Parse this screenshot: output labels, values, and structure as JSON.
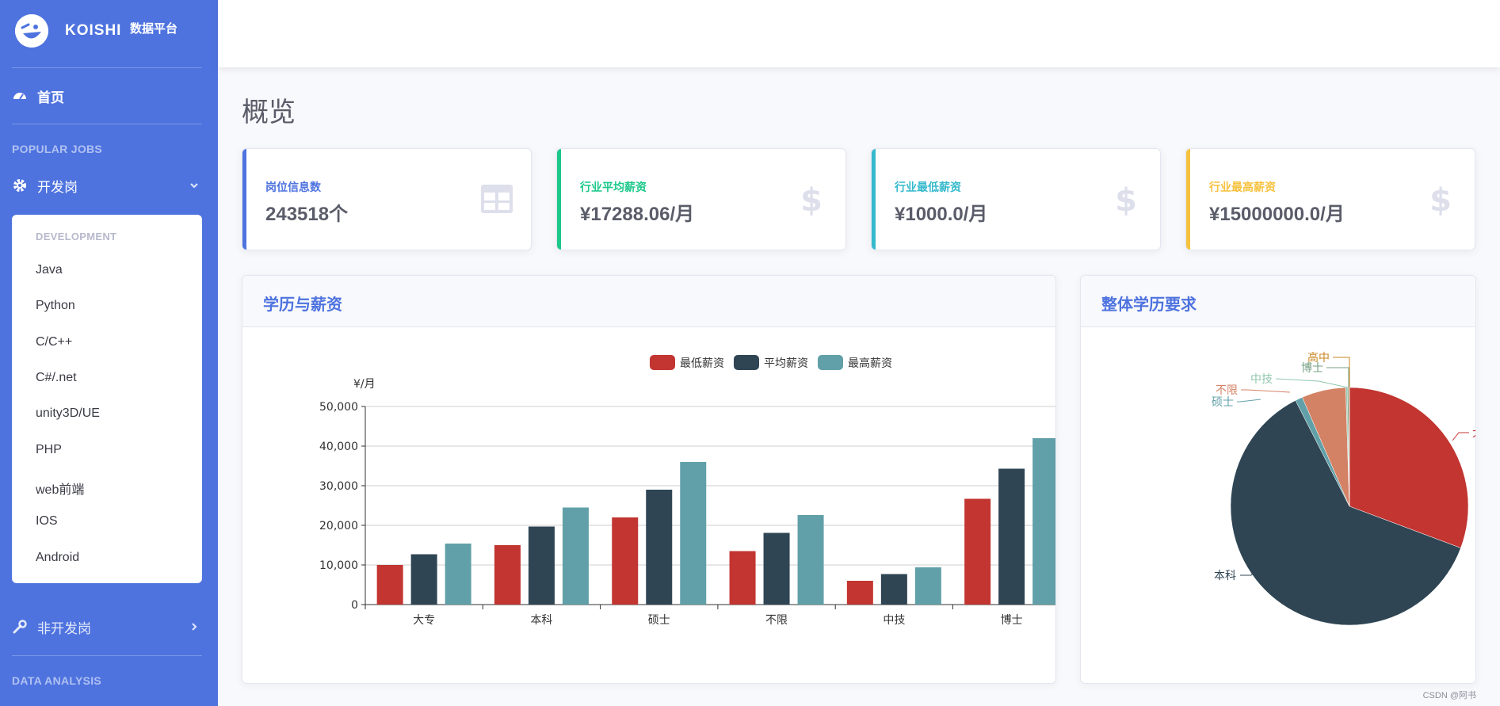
{
  "brand": {
    "name": "KOISHI",
    "subtitle": "数据平台"
  },
  "sidebar": {
    "home_label": "首页",
    "section_popular": "POPULAR JOBS",
    "dev_label": "开发岗",
    "submenu_heading": "DEVELOPMENT",
    "submenu_items": [
      "Java",
      "Python",
      "C/C++",
      "C#/.net",
      "unity3D/UE",
      "PHP",
      "web前端",
      "IOS",
      "Android"
    ],
    "nondev_label": "非开发岗",
    "section_data": "DATA ANALYSIS"
  },
  "page": {
    "title": "概览"
  },
  "stats": [
    {
      "label": "岗位信息数",
      "value": "243518个",
      "color": "#4e73df",
      "icon": "table-icon"
    },
    {
      "label": "行业平均薪资",
      "value": "¥17288.06/月",
      "color": "#1cc88a",
      "icon": "dollar-icon"
    },
    {
      "label": "行业最低薪资",
      "value": "¥1000.0/月",
      "color": "#36b9cc",
      "icon": "dollar-icon"
    },
    {
      "label": "行业最高薪资",
      "value": "¥15000000.0/月",
      "color": "#f6c23e",
      "icon": "dollar-icon"
    }
  ],
  "panels": {
    "bar_title": "学历与薪资",
    "pie_title": "整体学历要求"
  },
  "footer_note": "CSDN @阿书",
  "chart_data": [
    {
      "type": "bar",
      "title": "",
      "ylabel": "¥/月",
      "ylim": [
        0,
        50000
      ],
      "yticks": [
        0,
        10000,
        20000,
        30000,
        40000,
        50000
      ],
      "ytick_labels": [
        "0",
        "10,000",
        "20,000",
        "30,000",
        "40,000",
        "50,000"
      ],
      "grid": true,
      "legend": "top-center",
      "categories": [
        "大专",
        "本科",
        "硕士",
        "不限",
        "中技",
        "博士"
      ],
      "series": [
        {
          "name": "最低薪资",
          "color": "#c23531",
          "values": [
            10000,
            15000,
            22000,
            13500,
            6000,
            26700
          ]
        },
        {
          "name": "平均薪资",
          "color": "#2f4554",
          "values": [
            12700,
            19700,
            29000,
            18100,
            7700,
            34300
          ]
        },
        {
          "name": "最高薪资",
          "color": "#61a0a8",
          "values": [
            15400,
            24500,
            36000,
            22600,
            9400,
            42000
          ]
        }
      ]
    },
    {
      "type": "pie",
      "title": "",
      "labels": [
        "大专",
        "本科",
        "硕士",
        "不限",
        "中技",
        "博士",
        "高中"
      ],
      "values": [
        30.7,
        61.8,
        1.0,
        6.0,
        0.2,
        0.2,
        0.1
      ],
      "colors": [
        "#c23531",
        "#2f4554",
        "#61a0a8",
        "#d48265",
        "#91c7ae",
        "#749f83",
        "#ca8622"
      ]
    }
  ]
}
